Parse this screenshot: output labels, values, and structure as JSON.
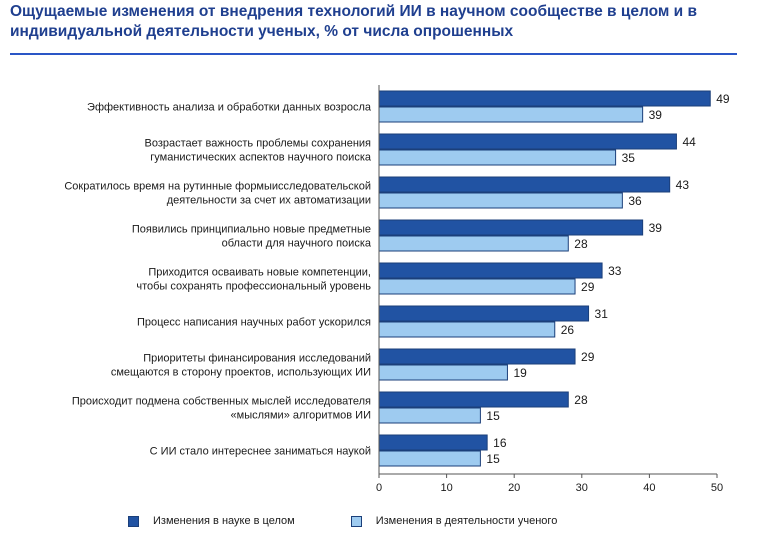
{
  "title": "Ощущаемые изменения от внедрения технологий ИИ в научном сообществе в целом и в индивидуальной деятельности ученых, % от числа опрошенных",
  "colors": {
    "title": "#1f3f8f",
    "series_dark": "#2153a3",
    "series_light": "#9ecbf0",
    "bar_border": "#1b3f7a"
  },
  "chart_data": {
    "type": "bar",
    "orientation": "horizontal",
    "title": "Ощущаемые изменения от внедрения технологий ИИ в научном сообществе в целом и в индивидуальной деятельности ученых, % от числа опрошенных",
    "categories": [
      [
        "Эффективность анализа и обработки данных возросла"
      ],
      [
        "Возрастает важность проблемы сохранения",
        "гуманистических аспектов научного поиска"
      ],
      [
        "Сократилось время на рутинные формыисследовательской",
        "деятельности за счет их автоматизации"
      ],
      [
        "Появились принципиально новые предметные",
        "области для научного поиска"
      ],
      [
        "Приходится осваивать новые компетенции,",
        "чтобы сохранять профессиональный уровень"
      ],
      [
        "Процесс написания научных работ ускорился"
      ],
      [
        "Приоритеты финансирования исследований",
        "смещаются в сторону проектов, использующих ИИ"
      ],
      [
        "Происходит подмена собственных мыслей исследователя",
        "«мыслями» алгоритмов ИИ"
      ],
      [
        "С ИИ стало интереснее заниматься наукой"
      ]
    ],
    "series": [
      {
        "name": "Изменения в науке в целом",
        "color": "#2153a3",
        "values": [
          49,
          44,
          43,
          39,
          33,
          31,
          29,
          28,
          16
        ]
      },
      {
        "name": "Изменения в деятельности ученого",
        "color": "#9ecbf0",
        "values": [
          39,
          35,
          36,
          28,
          29,
          26,
          19,
          15,
          15
        ]
      }
    ],
    "xlim": [
      0,
      50
    ],
    "xticks": [
      "0",
      "10",
      "20",
      "30",
      "40",
      "50"
    ],
    "grid": false,
    "legend_position": "bottom"
  }
}
